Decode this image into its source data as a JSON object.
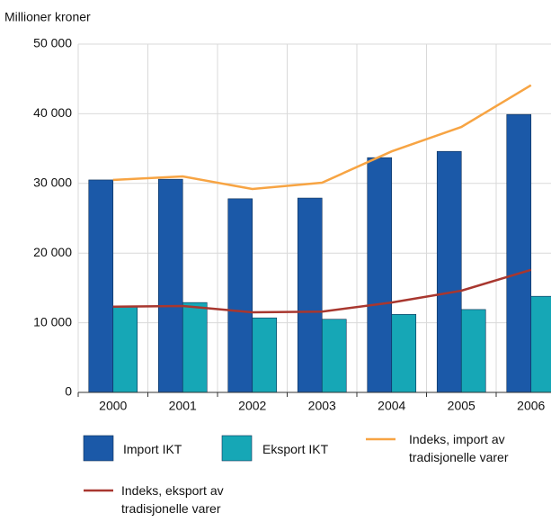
{
  "chart_data": {
    "type": "bar",
    "y_label": "Millioner kroner",
    "categories": [
      "2000",
      "2001",
      "2002",
      "2003",
      "2004",
      "2005",
      "2006"
    ],
    "ylim": [
      0,
      50000
    ],
    "yticks": [
      0,
      {
        "value": 10000,
        "label": "10 000"
      },
      {
        "value": 20000,
        "label": "20 000"
      },
      {
        "value": 30000,
        "label": "30 000"
      },
      {
        "value": 40000,
        "label": "40 000"
      },
      {
        "value": 50000,
        "label": "50 000"
      }
    ],
    "grid": true,
    "series": [
      {
        "name": "Import IKT",
        "type": "bar",
        "color": "#1b59a8",
        "values": [
          30500,
          30600,
          27800,
          27900,
          33700,
          34600,
          39900
        ]
      },
      {
        "name": "Eksport IKT",
        "type": "bar",
        "color": "#16a7b6",
        "values": [
          12300,
          12900,
          10700,
          10500,
          11200,
          11900,
          13800
        ]
      },
      {
        "name": "Indeks, import av tradisjonelle varer",
        "type": "line",
        "color": "#f7a443",
        "values": [
          30500,
          31000,
          29200,
          30100,
          34600,
          38100,
          44100
        ]
      },
      {
        "name": "Indeks, eksport av tradisjonelle varer",
        "type": "line",
        "color": "#a8372f",
        "values": [
          12300,
          12400,
          11500,
          11600,
          12900,
          14600,
          17600
        ]
      }
    ]
  }
}
